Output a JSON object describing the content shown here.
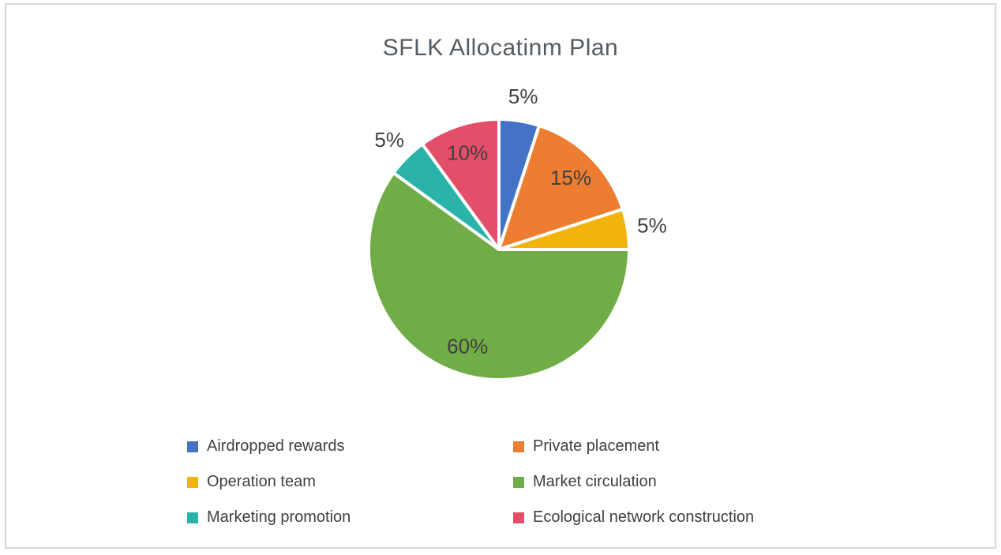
{
  "window": {
    "background": "#ffffff",
    "frame_border_color": "#d9d9d9"
  },
  "chart_data": {
    "type": "pie",
    "title": "SFLK Allocatinm Plan",
    "title_color": "#545c63",
    "data_label_color": "#404040",
    "legend_text_color": "#404040",
    "legend_position": "bottom",
    "legend_columns": 2,
    "start_angle_deg": 0,
    "direction": "clockwise",
    "slice_gap_color": "#ffffff",
    "slices": [
      {
        "label": "Airdropped rewards",
        "value": 5,
        "pct_label": "5%",
        "color": "#4472c4",
        "label_inside": false
      },
      {
        "label": "Private placement",
        "value": 15,
        "pct_label": "15%",
        "color": "#ed7d31",
        "label_inside": true
      },
      {
        "label": "Operation team",
        "value": 5,
        "pct_label": "5%",
        "color": "#f0b40d",
        "label_inside": false
      },
      {
        "label": "Market circulation",
        "value": 60,
        "pct_label": "60%",
        "color": "#70ad47",
        "label_inside": true
      },
      {
        "label": "Marketing promotion",
        "value": 5,
        "pct_label": "5%",
        "color": "#2ab3a8",
        "label_inside": false
      },
      {
        "label": "Ecological network construction",
        "value": 10,
        "pct_label": "10%",
        "color": "#e34f68",
        "label_inside": true
      }
    ]
  }
}
